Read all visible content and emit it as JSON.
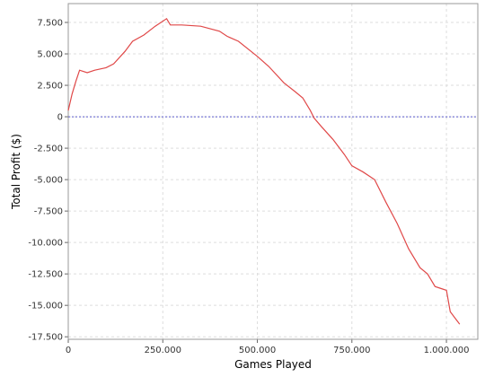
{
  "chart_data": {
    "type": "line",
    "x_label": "Games Played",
    "y_label": "Total Profit ($)",
    "x": [
      0,
      10000,
      20000,
      30000,
      50000,
      70000,
      100000,
      120000,
      150000,
      170000,
      200000,
      230000,
      260000,
      270000,
      300000,
      350000,
      400000,
      420000,
      450000,
      500000,
      530000,
      570000,
      600000,
      620000,
      640000,
      650000,
      670000,
      700000,
      730000,
      750000,
      780000,
      810000,
      840000,
      870000,
      900000,
      930000,
      950000,
      970000,
      990000,
      1000000,
      1010000,
      1030000,
      1035000
    ],
    "values": [
      500,
      1800,
      2800,
      3700,
      3500,
      3700,
      3900,
      4200,
      5200,
      6000,
      6500,
      7200,
      7800,
      7300,
      7300,
      7200,
      6800,
      6400,
      6000,
      4800,
      4000,
      2700,
      2000,
      1500,
      500,
      -100,
      -800,
      -1800,
      -3000,
      -3900,
      -4400,
      -5000,
      -6800,
      -8500,
      -10500,
      -12000,
      -12500,
      -13500,
      -13700,
      -13800,
      -15500,
      -16300,
      -16500
    ],
    "color": "#e04848",
    "reference_line": {
      "value": 0,
      "color": "#5a5acc"
    },
    "xlim": [
      0,
      1083000
    ],
    "ylim": [
      -17700,
      9000
    ],
    "xticks": [
      0,
      {
        "value": 250000,
        "label": "250.000"
      },
      {
        "value": 500000,
        "label": "500.000"
      },
      {
        "value": 750000,
        "label": "750.000"
      },
      {
        "value": 1000000,
        "label": "1.000.000"
      }
    ],
    "yticks": [
      {
        "value": 7500,
        "label": "7.500"
      },
      {
        "value": 5000,
        "label": "5.000"
      },
      {
        "value": 2500,
        "label": "2.500"
      },
      0,
      {
        "value": -2500,
        "label": "-2.500"
      },
      {
        "value": -5000,
        "label": "-5.000"
      },
      {
        "value": -7500,
        "label": "-7.500"
      },
      {
        "value": -10000,
        "label": "-10.000"
      },
      {
        "value": -12500,
        "label": "-12.500"
      },
      {
        "value": -15000,
        "label": "-15.000"
      },
      {
        "value": -17500,
        "label": "-17.500"
      }
    ],
    "grid": true
  }
}
